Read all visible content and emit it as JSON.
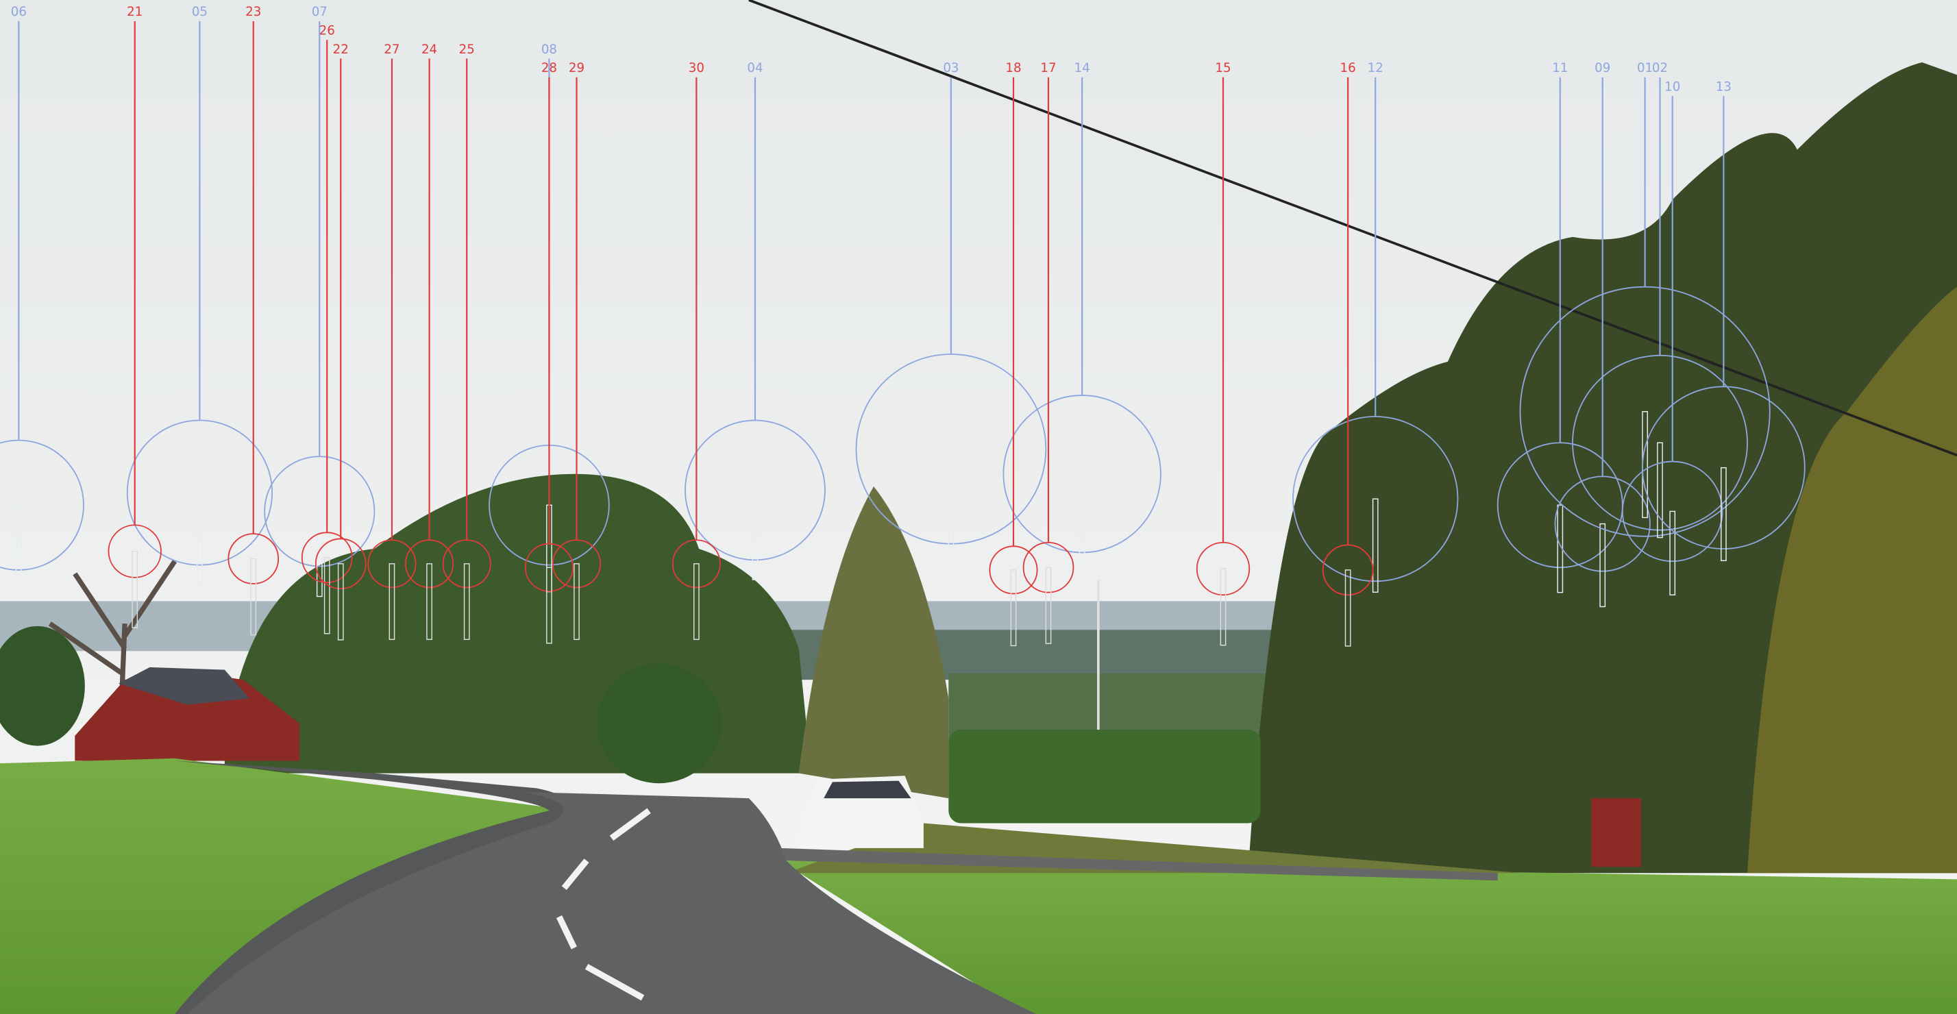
{
  "markers": [
    {
      "label": "06",
      "color": "#8ea6df"
    },
    {
      "label": "05",
      "color": "#8ea6df"
    },
    {
      "label": "07",
      "color": "#8ea6df"
    },
    {
      "label": "08",
      "color": "#8ea6df"
    },
    {
      "label": "04",
      "color": "#8ea6df"
    },
    {
      "label": "03",
      "color": "#8ea6df"
    },
    {
      "label": "14",
      "color": "#8ea6df"
    },
    {
      "label": "12",
      "color": "#8ea6df"
    },
    {
      "label": "11",
      "color": "#8ea6df"
    },
    {
      "label": "09",
      "color": "#8ea6df"
    },
    {
      "label": "01",
      "color": "#8ea6df"
    },
    {
      "label": "02",
      "color": "#8ea6df"
    },
    {
      "label": "10",
      "color": "#8ea6df"
    },
    {
      "label": "13",
      "color": "#8ea6df"
    },
    {
      "label": "21",
      "color": "#e03a3a"
    },
    {
      "label": "23",
      "color": "#e03a3a"
    },
    {
      "label": "26",
      "color": "#e03a3a"
    },
    {
      "label": "22",
      "color": "#e03a3a"
    },
    {
      "label": "27",
      "color": "#e03a3a"
    },
    {
      "label": "24",
      "color": "#e03a3a"
    },
    {
      "label": "25",
      "color": "#e03a3a"
    },
    {
      "label": "28",
      "color": "#e03a3a"
    },
    {
      "label": "29",
      "color": "#e03a3a"
    },
    {
      "label": "30",
      "color": "#e03a3a"
    },
    {
      "label": "18",
      "color": "#e03a3a"
    },
    {
      "label": "17",
      "color": "#e03a3a"
    },
    {
      "label": "15",
      "color": "#e03a3a"
    },
    {
      "label": "16",
      "color": "#e03a3a"
    }
  ]
}
